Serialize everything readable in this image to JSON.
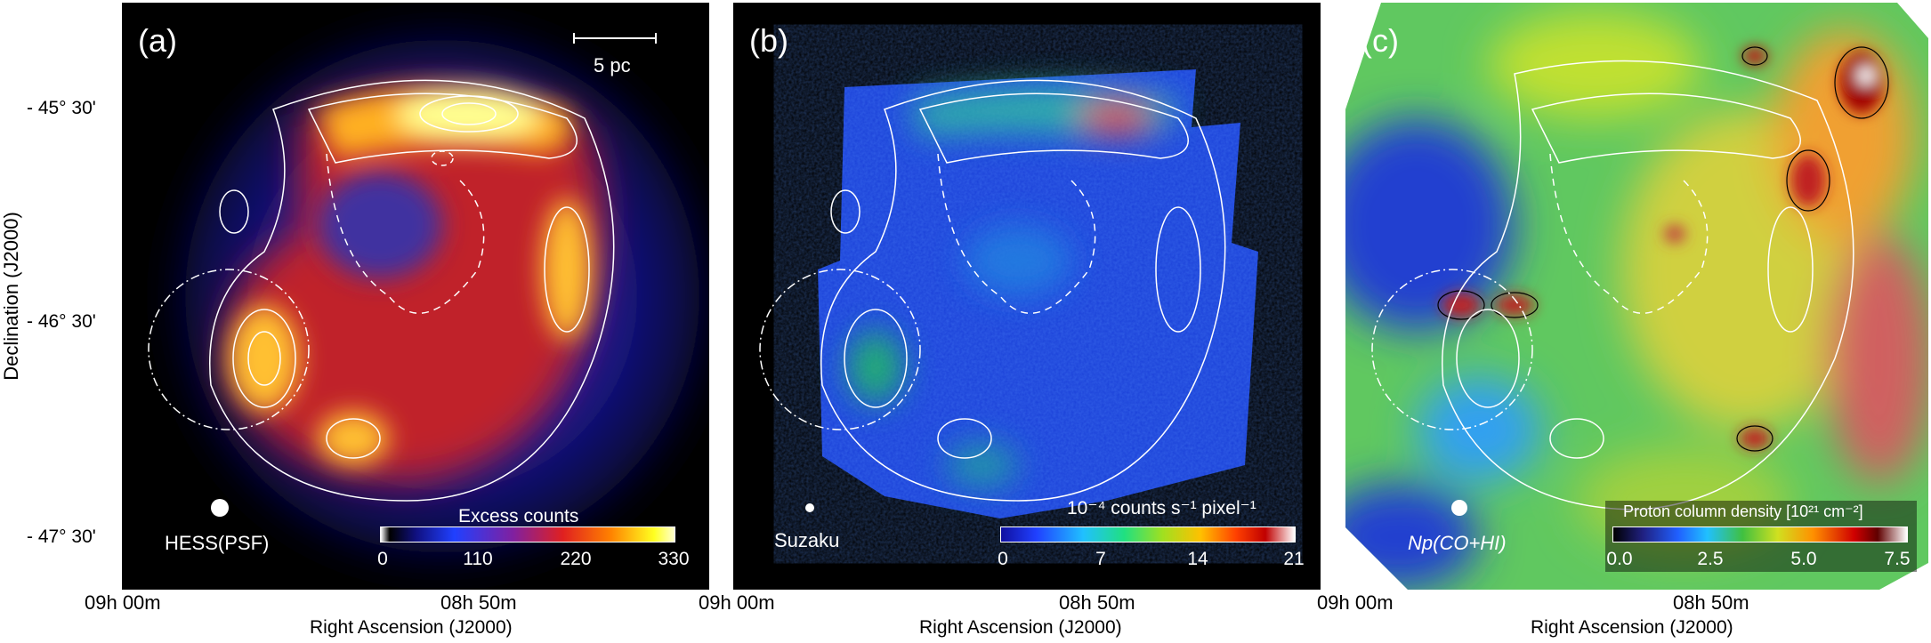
{
  "figure": {
    "y_axis_title": "Declination (J2000)",
    "y_ticks": [
      "- 45° 30'",
      "- 46° 30'",
      "- 47° 30'"
    ],
    "x_axis_title": "Right Ascension (J2000)",
    "x_ticks": [
      "09h 00m",
      "08h 50m"
    ]
  },
  "panels": [
    {
      "label": "(a)",
      "scale_bar": "5 pc",
      "psf_label": "HESS(PSF)",
      "colorbar_title": "Excess counts",
      "colorbar_ticks": [
        "0",
        "110",
        "220",
        "330"
      ]
    },
    {
      "label": "(b)",
      "psf_label": "Suzaku",
      "colorbar_title": "10⁻⁴ counts s⁻¹ pixel⁻¹",
      "colorbar_ticks": [
        "0",
        "7",
        "14",
        "21"
      ]
    },
    {
      "label": "(c)",
      "psf_label": "Np(CO+HI)",
      "colorbar_title": "Proton column density [10²¹ cm⁻²]",
      "colorbar_ticks": [
        "0.0",
        "2.5",
        "5.0",
        "7.5"
      ]
    }
  ],
  "colors": {
    "background": "#000000",
    "contour": "#ffffff",
    "molecular_contour": "#000000"
  }
}
